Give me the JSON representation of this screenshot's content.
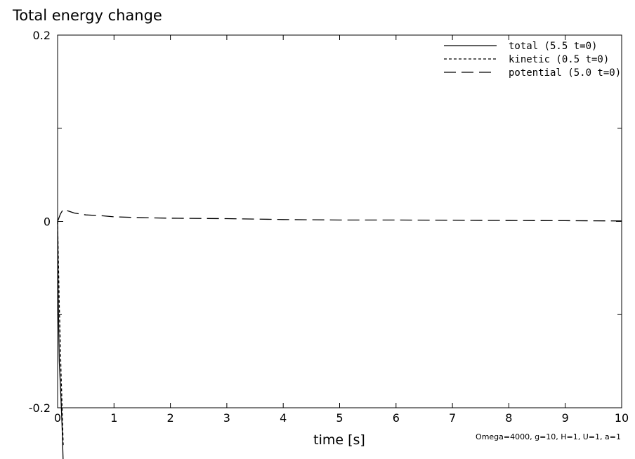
{
  "chart_data": {
    "type": "line",
    "title": "Total energy change",
    "xlabel": "time [s]",
    "ylabel": "",
    "xlim": [
      0,
      10
    ],
    "ylim": [
      -0.2,
      0.2
    ],
    "x_ticks": [
      0,
      1,
      2,
      3,
      4,
      5,
      6,
      7,
      8,
      9,
      10
    ],
    "x_tick_labels": [
      "0",
      "1",
      "2",
      "3",
      "4",
      "5",
      "6",
      "7",
      "8",
      "9",
      "10"
    ],
    "y_ticks": [
      -0.2,
      0,
      0.2
    ],
    "y_tick_labels": [
      "-0.2",
      "0",
      "0.2"
    ],
    "legend_position": "top-right",
    "annotation": "Omega=4000, g=10, H=1, U=1, a=1",
    "series": [
      {
        "name": "total (5.5 t=0)",
        "style": "solid",
        "x": [
          0,
          0.005,
          0.01,
          0.03,
          0.06,
          0.08,
          0.1
        ],
        "y": [
          0,
          -0.02,
          -0.08,
          -0.15,
          -0.19,
          -0.22,
          -0.26
        ]
      },
      {
        "name": "kinetic (0.5 t=0)",
        "style": "short-dash",
        "x": [
          0,
          0.01,
          0.03,
          0.06,
          0.1
        ],
        "y": [
          0,
          -0.03,
          -0.09,
          -0.16,
          -0.24
        ]
      },
      {
        "name": "potential (5.0 t=0)",
        "style": "long-dash",
        "x": [
          0,
          0.05,
          0.1,
          0.15,
          0.3,
          0.5,
          0.8,
          1,
          1.5,
          2,
          3,
          4,
          5,
          6,
          7,
          8,
          9,
          10
        ],
        "y": [
          0,
          0.008,
          0.013,
          0.012,
          0.009,
          0.007,
          0.006,
          0.005,
          0.004,
          0.0035,
          0.003,
          0.002,
          0.0015,
          0.0015,
          0.0012,
          0.001,
          0.0008,
          0.0005
        ]
      }
    ]
  }
}
